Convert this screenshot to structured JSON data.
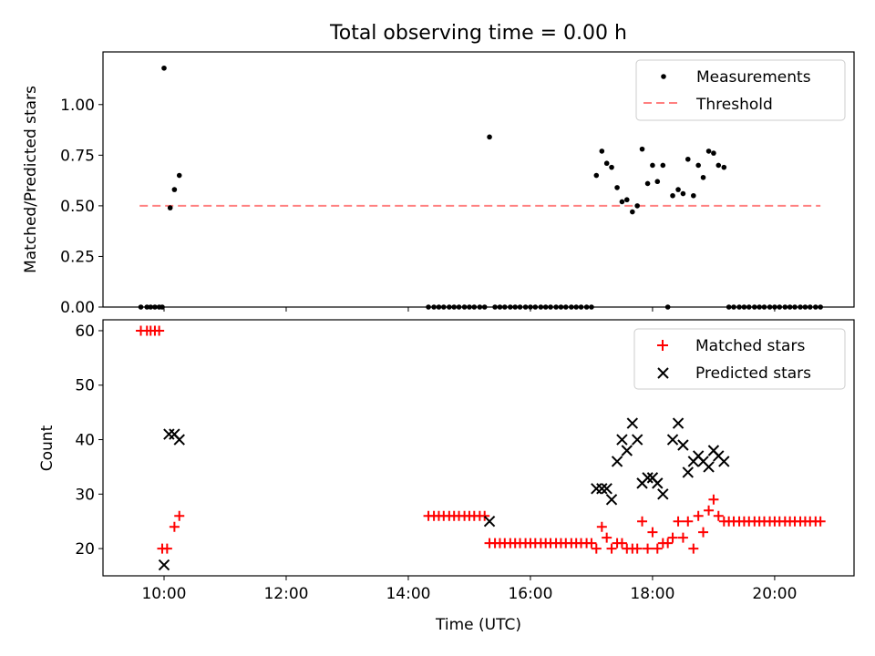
{
  "colors": {
    "matched": "#ff0000",
    "predicted": "#000000",
    "threshold": "#ff8080",
    "measurements": "#000000"
  },
  "chart_data": [
    {
      "type": "scatter",
      "title": "Total observing time = 0.00 h",
      "xlabel": "",
      "ylabel": "Matched/Predicted stars",
      "xlim": [
        9.0,
        21.3
      ],
      "ylim": [
        0.0,
        1.26
      ],
      "yticks": [
        0.0,
        0.25,
        0.5,
        0.75,
        1.0
      ],
      "ytick_labels": [
        "0.00",
        "0.25",
        "0.50",
        "0.75",
        "1.00"
      ],
      "xticks": [
        10,
        12,
        14,
        16,
        18,
        20
      ],
      "legend": "upper right",
      "grid": false,
      "series": [
        {
          "name": "Measurements",
          "marker": "dot",
          "points": [
            [
              9.62,
              0
            ],
            [
              9.72,
              0
            ],
            [
              9.78,
              0
            ],
            [
              9.85,
              0
            ],
            [
              9.92,
              0
            ],
            [
              9.97,
              0
            ],
            [
              10.0,
              1.18
            ],
            [
              10.1,
              0.49
            ],
            [
              10.17,
              0.58
            ],
            [
              10.25,
              0.65
            ],
            [
              14.33,
              0
            ],
            [
              14.42,
              0
            ],
            [
              14.5,
              0
            ],
            [
              14.58,
              0
            ],
            [
              14.67,
              0
            ],
            [
              14.75,
              0
            ],
            [
              14.83,
              0
            ],
            [
              14.92,
              0
            ],
            [
              15.0,
              0
            ],
            [
              15.08,
              0
            ],
            [
              15.17,
              0
            ],
            [
              15.25,
              0
            ],
            [
              15.33,
              0.84
            ],
            [
              15.42,
              0
            ],
            [
              15.5,
              0
            ],
            [
              15.58,
              0
            ],
            [
              15.67,
              0
            ],
            [
              15.75,
              0
            ],
            [
              15.83,
              0
            ],
            [
              15.92,
              0
            ],
            [
              16.0,
              0
            ],
            [
              16.08,
              0
            ],
            [
              16.17,
              0
            ],
            [
              16.25,
              0
            ],
            [
              16.33,
              0
            ],
            [
              16.42,
              0
            ],
            [
              16.5,
              0
            ],
            [
              16.58,
              0
            ],
            [
              16.67,
              0
            ],
            [
              16.75,
              0
            ],
            [
              16.83,
              0
            ],
            [
              16.92,
              0
            ],
            [
              17.0,
              0
            ],
            [
              17.08,
              0.65
            ],
            [
              17.17,
              0.77
            ],
            [
              17.25,
              0.71
            ],
            [
              17.33,
              0.69
            ],
            [
              17.42,
              0.59
            ],
            [
              17.5,
              0.52
            ],
            [
              17.58,
              0.53
            ],
            [
              17.67,
              0.47
            ],
            [
              17.75,
              0.5
            ],
            [
              17.83,
              0.78
            ],
            [
              17.92,
              0.61
            ],
            [
              18.0,
              0.7
            ],
            [
              18.08,
              0.62
            ],
            [
              18.17,
              0.7
            ],
            [
              18.25,
              0
            ],
            [
              18.33,
              0.55
            ],
            [
              18.42,
              0.58
            ],
            [
              18.5,
              0.56
            ],
            [
              18.58,
              0.73
            ],
            [
              18.67,
              0.55
            ],
            [
              18.75,
              0.7
            ],
            [
              18.83,
              0.64
            ],
            [
              18.92,
              0.77
            ],
            [
              19.0,
              0.76
            ],
            [
              19.08,
              0.7
            ],
            [
              19.17,
              0.69
            ],
            [
              19.25,
              0
            ],
            [
              19.33,
              0
            ],
            [
              19.42,
              0
            ],
            [
              19.5,
              0
            ],
            [
              19.58,
              0
            ],
            [
              19.67,
              0
            ],
            [
              19.75,
              0
            ],
            [
              19.83,
              0
            ],
            [
              19.92,
              0
            ],
            [
              20.0,
              0
            ],
            [
              20.08,
              0
            ],
            [
              20.17,
              0
            ],
            [
              20.25,
              0
            ],
            [
              20.33,
              0
            ],
            [
              20.42,
              0
            ],
            [
              20.5,
              0
            ],
            [
              20.58,
              0
            ],
            [
              20.67,
              0
            ],
            [
              20.75,
              0
            ]
          ]
        },
        {
          "name": "Threshold",
          "style": "dashed-line",
          "points": [
            [
              9.6,
              0.5
            ],
            [
              20.75,
              0.5
            ]
          ]
        }
      ]
    },
    {
      "type": "scatter",
      "title": "",
      "xlabel": "Time (UTC)",
      "ylabel": "Count",
      "xlim": [
        9.0,
        21.3
      ],
      "ylim": [
        15.0,
        62.0
      ],
      "yticks": [
        20,
        30,
        40,
        50,
        60
      ],
      "ytick_labels": [
        "20",
        "30",
        "40",
        "50",
        "60"
      ],
      "xticks": [
        10,
        12,
        14,
        16,
        18,
        20
      ],
      "xtick_labels": [
        "10:00",
        "12:00",
        "14:00",
        "16:00",
        "18:00",
        "20:00"
      ],
      "legend": "upper right",
      "grid": false,
      "series": [
        {
          "name": "Matched stars",
          "marker": "plus",
          "points": [
            [
              9.62,
              60
            ],
            [
              9.72,
              60
            ],
            [
              9.78,
              60
            ],
            [
              9.85,
              60
            ],
            [
              9.92,
              60
            ],
            [
              9.97,
              20
            ],
            [
              10.05,
              20
            ],
            [
              10.17,
              24
            ],
            [
              10.25,
              26
            ],
            [
              14.33,
              26
            ],
            [
              14.42,
              26
            ],
            [
              14.5,
              26
            ],
            [
              14.58,
              26
            ],
            [
              14.67,
              26
            ],
            [
              14.75,
              26
            ],
            [
              14.83,
              26
            ],
            [
              14.92,
              26
            ],
            [
              15.0,
              26
            ],
            [
              15.08,
              26
            ],
            [
              15.17,
              26
            ],
            [
              15.25,
              26
            ],
            [
              15.33,
              21
            ],
            [
              15.42,
              21
            ],
            [
              15.5,
              21
            ],
            [
              15.58,
              21
            ],
            [
              15.67,
              21
            ],
            [
              15.75,
              21
            ],
            [
              15.83,
              21
            ],
            [
              15.92,
              21
            ],
            [
              16.0,
              21
            ],
            [
              16.08,
              21
            ],
            [
              16.17,
              21
            ],
            [
              16.25,
              21
            ],
            [
              16.33,
              21
            ],
            [
              16.42,
              21
            ],
            [
              16.5,
              21
            ],
            [
              16.58,
              21
            ],
            [
              16.67,
              21
            ],
            [
              16.75,
              21
            ],
            [
              16.83,
              21
            ],
            [
              16.92,
              21
            ],
            [
              17.0,
              21
            ],
            [
              17.08,
              20
            ],
            [
              17.17,
              24
            ],
            [
              17.25,
              22
            ],
            [
              17.33,
              20
            ],
            [
              17.42,
              21
            ],
            [
              17.5,
              21
            ],
            [
              17.58,
              20
            ],
            [
              17.67,
              20
            ],
            [
              17.75,
              20
            ],
            [
              17.83,
              25
            ],
            [
              17.92,
              20
            ],
            [
              18.0,
              23
            ],
            [
              18.08,
              20
            ],
            [
              18.17,
              21
            ],
            [
              18.25,
              21
            ],
            [
              18.33,
              22
            ],
            [
              18.42,
              25
            ],
            [
              18.5,
              22
            ],
            [
              18.58,
              25
            ],
            [
              18.67,
              20
            ],
            [
              18.75,
              26
            ],
            [
              18.83,
              23
            ],
            [
              18.92,
              27
            ],
            [
              19.0,
              29
            ],
            [
              19.08,
              26
            ],
            [
              19.17,
              25
            ],
            [
              19.25,
              25
            ],
            [
              19.33,
              25
            ],
            [
              19.42,
              25
            ],
            [
              19.5,
              25
            ],
            [
              19.58,
              25
            ],
            [
              19.67,
              25
            ],
            [
              19.75,
              25
            ],
            [
              19.83,
              25
            ],
            [
              19.92,
              25
            ],
            [
              20.0,
              25
            ],
            [
              20.08,
              25
            ],
            [
              20.17,
              25
            ],
            [
              20.25,
              25
            ],
            [
              20.33,
              25
            ],
            [
              20.42,
              25
            ],
            [
              20.5,
              25
            ],
            [
              20.58,
              25
            ],
            [
              20.67,
              25
            ],
            [
              20.75,
              25
            ]
          ]
        },
        {
          "name": "Predicted stars",
          "marker": "x",
          "points": [
            [
              10.0,
              17
            ],
            [
              10.08,
              41
            ],
            [
              10.17,
              41
            ],
            [
              10.25,
              40
            ],
            [
              15.33,
              25
            ],
            [
              17.08,
              31
            ],
            [
              17.17,
              31
            ],
            [
              17.25,
              31
            ],
            [
              17.33,
              29
            ],
            [
              17.42,
              36
            ],
            [
              17.5,
              40
            ],
            [
              17.58,
              38
            ],
            [
              17.67,
              43
            ],
            [
              17.75,
              40
            ],
            [
              17.83,
              32
            ],
            [
              17.92,
              33
            ],
            [
              18.0,
              33
            ],
            [
              18.08,
              32
            ],
            [
              18.17,
              30
            ],
            [
              18.33,
              40
            ],
            [
              18.42,
              43
            ],
            [
              18.5,
              39
            ],
            [
              18.58,
              34
            ],
            [
              18.67,
              36
            ],
            [
              18.75,
              37
            ],
            [
              18.83,
              36
            ],
            [
              18.92,
              35
            ],
            [
              19.0,
              38
            ],
            [
              19.08,
              37
            ],
            [
              19.17,
              36
            ]
          ]
        }
      ]
    }
  ]
}
